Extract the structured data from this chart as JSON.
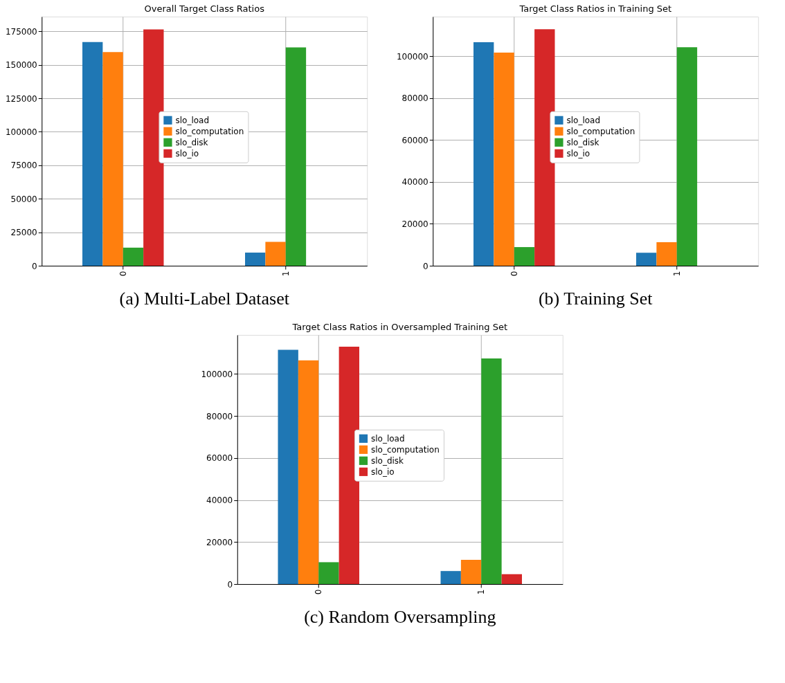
{
  "chart_data": [
    {
      "type": "bar",
      "title": "Overall Target Class Ratios",
      "categories": [
        "0",
        "1"
      ],
      "ylim": [
        0,
        186000
      ],
      "yticks": [
        0,
        25000,
        50000,
        75000,
        100000,
        125000,
        150000,
        175000
      ],
      "grid": true,
      "legend": "center",
      "annotations": [
        "(a) Multi-Label Dataset"
      ],
      "series": [
        {
          "name": "slo_load",
          "color": "#1f77b4",
          "values": [
            167000,
            9800
          ]
        },
        {
          "name": "slo_computation",
          "color": "#ff7f0e",
          "values": [
            159500,
            17800
          ]
        },
        {
          "name": "slo_disk",
          "color": "#2ca02c",
          "values": [
            13500,
            163000
          ]
        },
        {
          "name": "slo_io",
          "color": "#d62728",
          "values": [
            176500,
            null
          ]
        }
      ]
    },
    {
      "type": "bar",
      "title": "Target Class Ratios in Training Set",
      "categories": [
        "0",
        "1"
      ],
      "ylim": [
        0,
        119000
      ],
      "yticks": [
        0,
        20000,
        40000,
        60000,
        80000,
        100000
      ],
      "grid": true,
      "legend": "center",
      "annotations": [
        "(b) Training Set"
      ],
      "series": [
        {
          "name": "slo_load",
          "color": "#1f77b4",
          "values": [
            106800,
            6200
          ]
        },
        {
          "name": "slo_computation",
          "color": "#ff7f0e",
          "values": [
            101800,
            11200
          ]
        },
        {
          "name": "slo_disk",
          "color": "#2ca02c",
          "values": [
            8900,
            104400
          ]
        },
        {
          "name": "slo_io",
          "color": "#d62728",
          "values": [
            113000,
            null
          ]
        }
      ]
    },
    {
      "type": "bar",
      "title": "Target Class Ratios in Oversampled Training Set",
      "categories": [
        "0",
        "1"
      ],
      "ylim": [
        0,
        118600
      ],
      "yticks": [
        0,
        20000,
        40000,
        60000,
        80000,
        100000
      ],
      "grid": true,
      "legend": "center",
      "annotations": [
        "(c) Random Oversampling"
      ],
      "series": [
        {
          "name": "slo_load",
          "color": "#1f77b4",
          "values": [
            111500,
            6200
          ]
        },
        {
          "name": "slo_computation",
          "color": "#ff7f0e",
          "values": [
            106500,
            11500
          ]
        },
        {
          "name": "slo_disk",
          "color": "#2ca02c",
          "values": [
            10400,
            107400
          ]
        },
        {
          "name": "slo_io",
          "color": "#d62728",
          "values": [
            113000,
            4700
          ]
        }
      ]
    }
  ]
}
